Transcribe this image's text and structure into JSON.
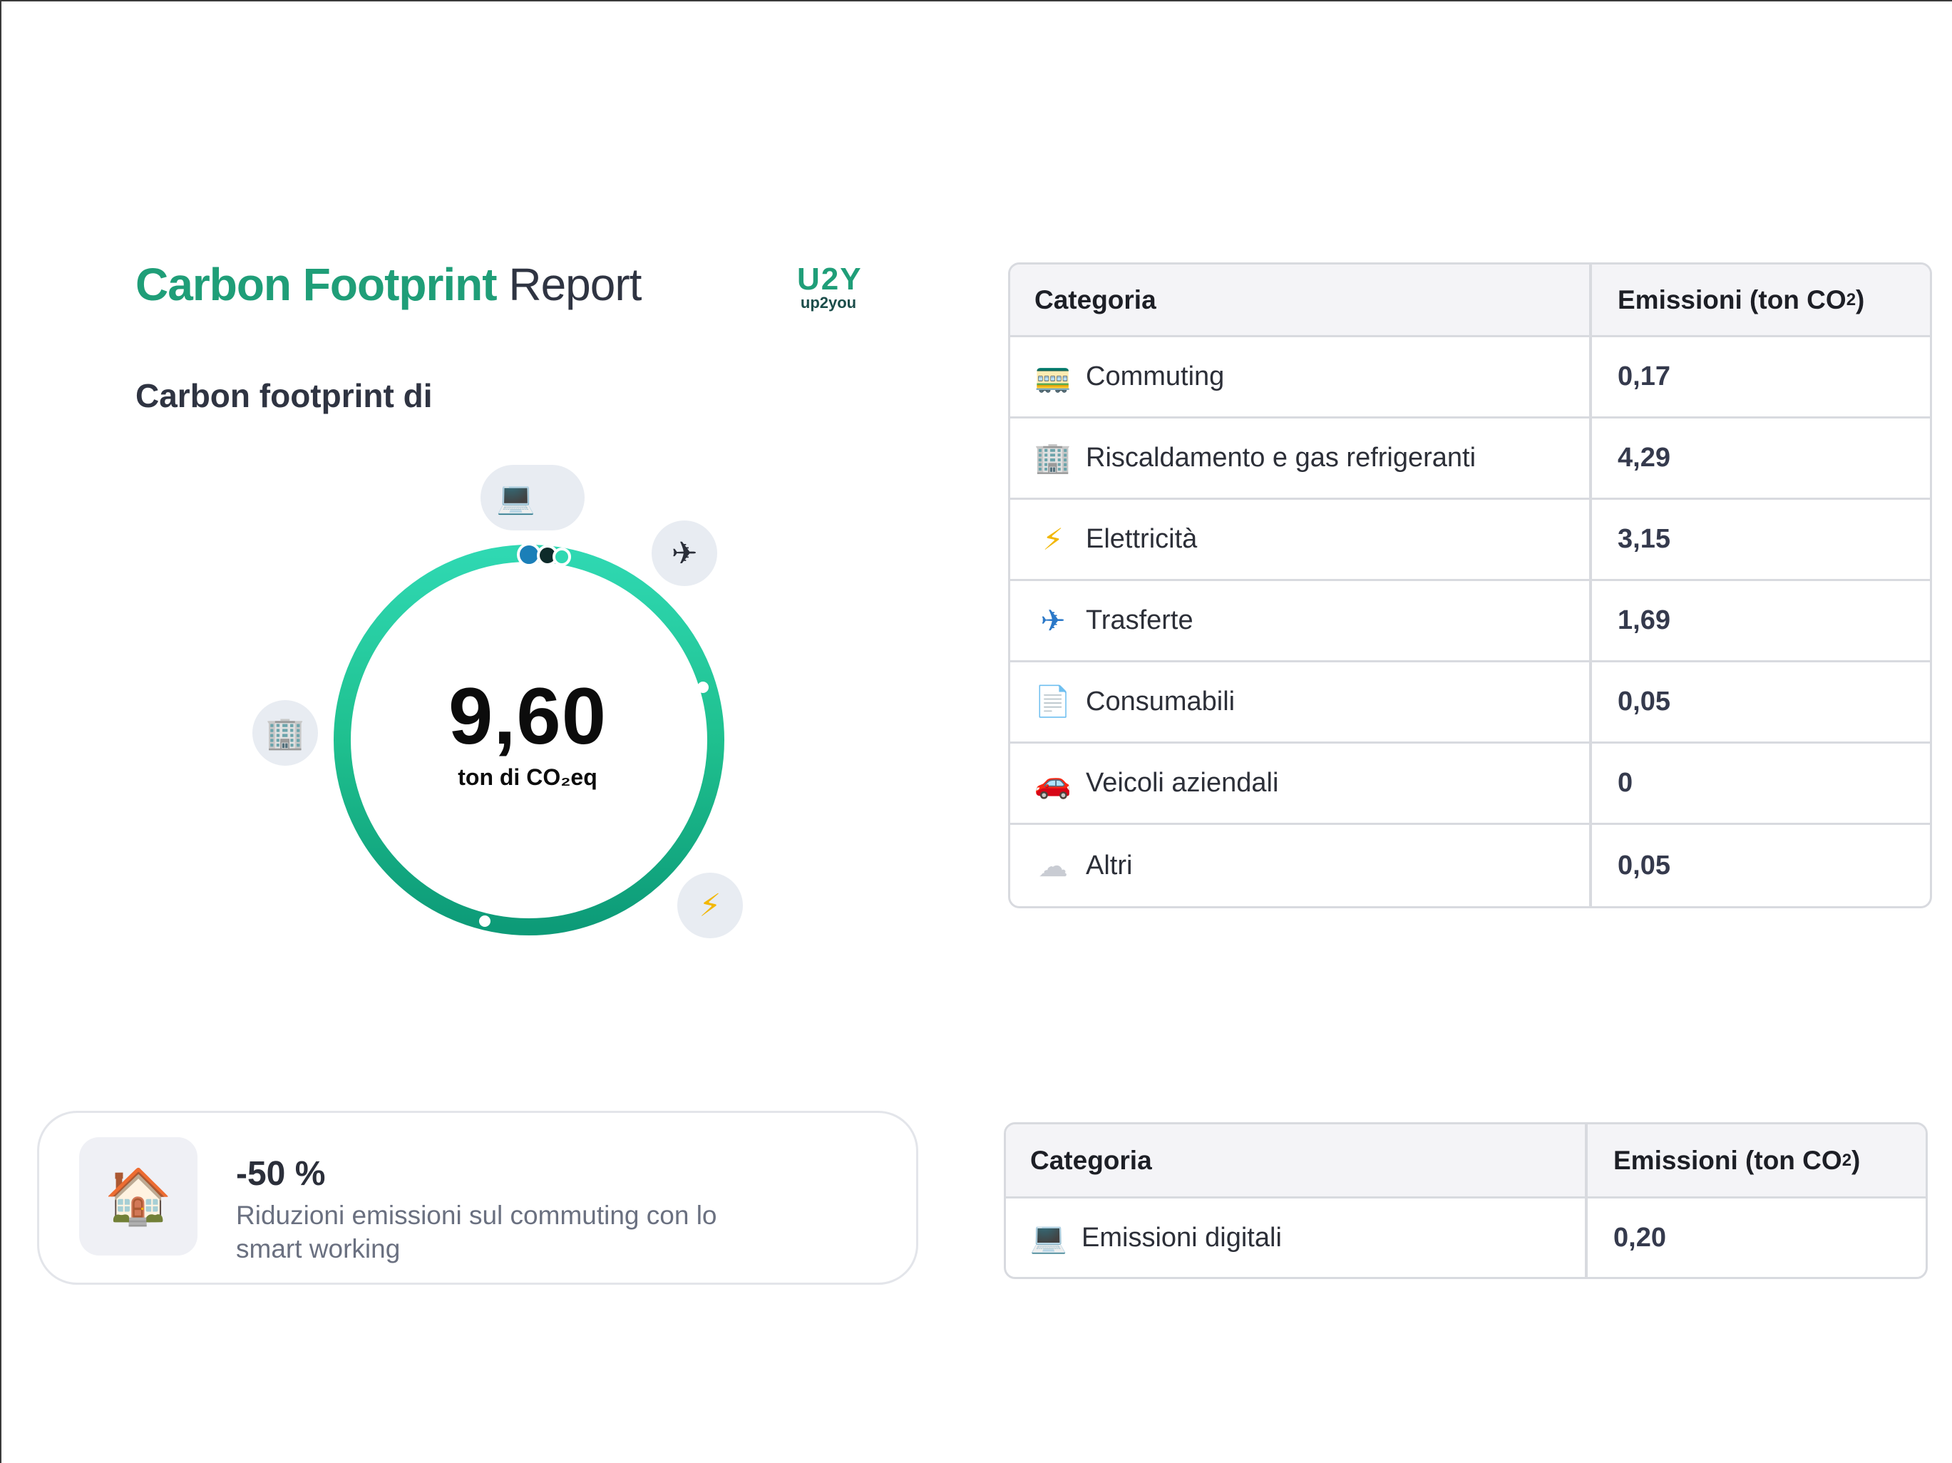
{
  "header": {
    "title_strong": "Carbon Footprint",
    "title_light": "Report",
    "logo_mark": "U2Y",
    "logo_word": "up2you",
    "subtitle": "Carbon footprint di"
  },
  "summary": {
    "total_value": "9,60",
    "total_unit": "ton di CO₂eq",
    "bubble_icons": [
      "laptop-icon",
      "airplane-icon",
      "office-building-icon",
      "lightning-icon"
    ]
  },
  "colors": {
    "brand_green": "#1f9e78",
    "ring_light": "#2fd8b2",
    "ring_mid": "#1fc08f",
    "ring_dark": "#0d9b78",
    "border": "#d8dadf",
    "header_bg": "#f4f4f7"
  },
  "table_main": {
    "headers": {
      "category": "Categoria",
      "emissions": "Emissioni (ton CO",
      "emissions_sub": "2",
      "emissions_close": ")"
    },
    "rows": [
      {
        "icon": "tram-icon",
        "glyph": "🚃",
        "label": "Commuting",
        "value": "0,17"
      },
      {
        "icon": "office-building-icon",
        "glyph": "🏢",
        "label": "Riscaldamento e gas refrigeranti",
        "value": "4,29"
      },
      {
        "icon": "lightning-icon",
        "glyph": "⚡",
        "label": "Elettricità",
        "value": "3,15"
      },
      {
        "icon": "airplane-icon",
        "glyph": "✈",
        "label": "Trasferte",
        "value": "1,69"
      },
      {
        "icon": "document-icon",
        "glyph": "📄",
        "label": "Consumabili",
        "value": "0,05"
      },
      {
        "icon": "car-icon",
        "glyph": "🚗",
        "label": "Veicoli aziendali",
        "value": "0"
      },
      {
        "icon": "cloud-icon",
        "glyph": "☁",
        "label": "Altri",
        "value": "0,05"
      }
    ]
  },
  "table_digital": {
    "headers": {
      "category": "Categoria",
      "emissions": "Emissioni (ton CO",
      "emissions_sub": "2",
      "emissions_close": ")"
    },
    "rows": [
      {
        "icon": "laptop-icon",
        "glyph": "💻",
        "label": "Emissioni digitali",
        "value": "0,20"
      }
    ]
  },
  "smart_working": {
    "icon": "house-icon",
    "glyph": "🏠",
    "value": "-50 %",
    "description": "Riduzioni emissioni sul commuting con lo smart working"
  }
}
